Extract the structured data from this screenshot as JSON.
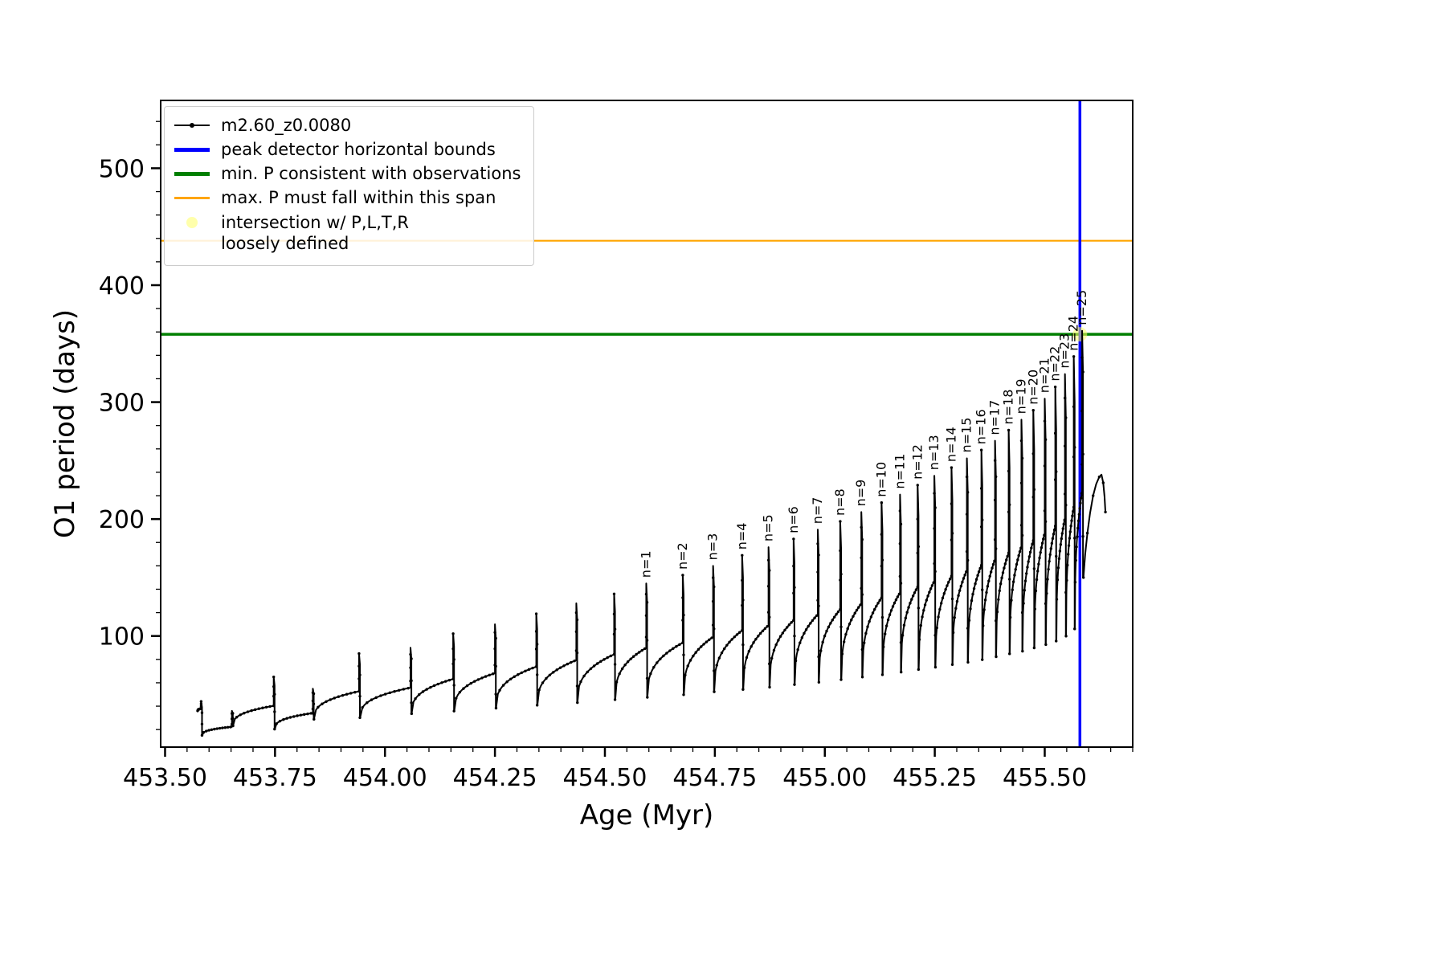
{
  "legend": {
    "items": [
      {
        "label": "m2.60_z0.0080",
        "color": "#000000",
        "swatch": "line-dot"
      },
      {
        "label": "peak detector horizontal bounds",
        "color": "#0000ff",
        "swatch": "line-thick"
      },
      {
        "label": "min. P consistent with observations",
        "color": "#007f00",
        "swatch": "line-thick"
      },
      {
        "label": "max. P must fall within this span",
        "color": "#ffa500",
        "swatch": "line"
      },
      {
        "label": "intersection w/ P,L,T,R",
        "label2": "loosely defined",
        "color": "#ffff66",
        "swatch": "dot"
      }
    ]
  },
  "chart_data": {
    "type": "line",
    "title": "",
    "xlabel": "Age (Myr)",
    "ylabel": "O1 period (days)",
    "xlim": [
      453.49,
      455.7
    ],
    "ylim": [
      5,
      558
    ],
    "grid": false,
    "legend_position": "upper left",
    "x_major_ticks": [
      453.5,
      453.75,
      454.0,
      454.25,
      454.5,
      454.75,
      455.0,
      455.25,
      455.5
    ],
    "x_major_tick_labels": [
      "453.50",
      "453.75",
      "454.00",
      "454.25",
      "454.50",
      "454.75",
      "455.00",
      "455.25",
      "455.50"
    ],
    "x_minor_step": 0.05,
    "y_major_ticks": [
      100,
      200,
      300,
      400,
      500
    ],
    "y_major_tick_labels": [
      "100",
      "200",
      "300",
      "400",
      "500"
    ],
    "y_minor_step": 20,
    "series_name": "m2.60_z0.0080",
    "series_color": "#000000",
    "hlines": [
      {
        "name": "max-P-span-line",
        "y": 438,
        "color": "#ffa500",
        "width": 2.2
      },
      {
        "name": "min-P-observations-line",
        "y": 358,
        "color": "#007f00",
        "width": 3.5
      }
    ],
    "vlines": [
      {
        "name": "peak-detector-bound-line",
        "x": 455.58,
        "color": "#0000ff",
        "width": 3.5
      }
    ],
    "intersection_marker": {
      "x": 455.58,
      "y": 358,
      "color": "#ffff66",
      "opacity": 0.55,
      "r": 9
    },
    "cycles": [
      {
        "age": 453.582,
        "peak": 44
      },
      {
        "age": 453.652,
        "peak": 36
      },
      {
        "age": 453.747,
        "peak": 65
      },
      {
        "age": 453.836,
        "peak": 55
      },
      {
        "age": 453.941,
        "peak": 85
      },
      {
        "age": 454.058,
        "peak": 90
      },
      {
        "age": 454.155,
        "peak": 102
      },
      {
        "age": 454.25,
        "peak": 110
      },
      {
        "age": 454.344,
        "peak": 119
      },
      {
        "age": 454.435,
        "peak": 128
      },
      {
        "age": 454.521,
        "peak": 136
      },
      {
        "age": 454.594,
        "peak": 145,
        "label": "n=1"
      },
      {
        "age": 454.677,
        "peak": 152,
        "label": "n=2"
      },
      {
        "age": 454.746,
        "peak": 160,
        "label": "n=3"
      },
      {
        "age": 454.812,
        "peak": 169,
        "label": "n=4"
      },
      {
        "age": 454.872,
        "peak": 176,
        "label": "n=5"
      },
      {
        "age": 454.929,
        "peak": 183,
        "label": "n=6"
      },
      {
        "age": 454.984,
        "peak": 191,
        "label": "n=7"
      },
      {
        "age": 455.035,
        "peak": 198,
        "label": "n=8"
      },
      {
        "age": 455.083,
        "peak": 206,
        "label": "n=9"
      },
      {
        "age": 455.129,
        "peak": 214,
        "label": "n=10"
      },
      {
        "age": 455.171,
        "peak": 221,
        "label": "n=11"
      },
      {
        "age": 455.211,
        "peak": 229,
        "label": "n=12"
      },
      {
        "age": 455.249,
        "peak": 237,
        "label": "n=13"
      },
      {
        "age": 455.288,
        "peak": 244,
        "label": "n=14"
      },
      {
        "age": 455.323,
        "peak": 252,
        "label": "n=15"
      },
      {
        "age": 455.356,
        "peak": 259,
        "label": "n=16"
      },
      {
        "age": 455.387,
        "peak": 267,
        "label": "n=17"
      },
      {
        "age": 455.418,
        "peak": 276,
        "label": "n=18"
      },
      {
        "age": 455.447,
        "peak": 285,
        "label": "n=19"
      },
      {
        "age": 455.474,
        "peak": 293,
        "label": "n=20"
      },
      {
        "age": 455.5,
        "peak": 303,
        "label": "n=21"
      },
      {
        "age": 455.524,
        "peak": 313,
        "label": "n=22"
      },
      {
        "age": 455.546,
        "peak": 324,
        "label": "n=23"
      },
      {
        "age": 455.566,
        "peak": 339,
        "label": "n=24"
      },
      {
        "age": 455.585,
        "peak": 361,
        "label": "n=25"
      }
    ],
    "tail": [
      [
        455.588,
        150
      ],
      [
        455.592,
        170
      ],
      [
        455.597,
        188
      ],
      [
        455.603,
        205
      ],
      [
        455.61,
        220
      ],
      [
        455.617,
        230
      ],
      [
        455.624,
        236
      ],
      [
        455.629,
        238
      ],
      [
        455.633,
        231
      ],
      [
        455.636,
        219
      ],
      [
        455.638,
        206
      ]
    ]
  }
}
